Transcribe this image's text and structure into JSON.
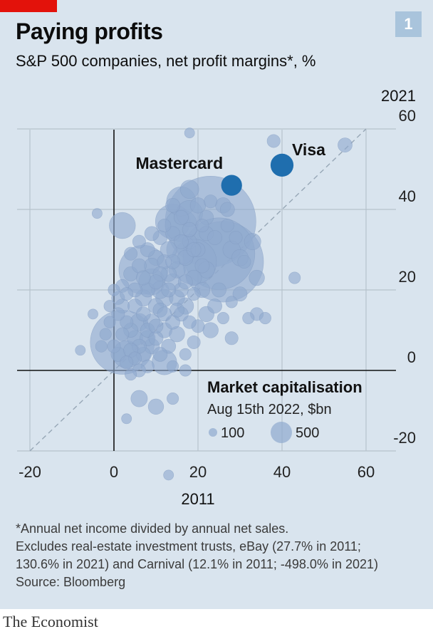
{
  "header": {
    "title": "Paying profits",
    "subtitle": "S&P 500 companies, net profit margins*, %",
    "figure_number": "1"
  },
  "chart_data": {
    "type": "scatter",
    "title": "Paying profits",
    "subtitle": "S&P 500 companies, net profit margins*, %",
    "xlabel": "2011",
    "ylabel": "2021",
    "xlim": [
      -20,
      70
    ],
    "ylim": [
      -20,
      60
    ],
    "x_ticks": [
      -20,
      0,
      20,
      40,
      60
    ],
    "y_ticks": [
      -20,
      0,
      20,
      40,
      60
    ],
    "grid": true,
    "diagonal_reference_line": "y = x (dashed)",
    "size_legend": {
      "title": "Market capitalisation",
      "subtitle": "Aug 15th 2022, $bn",
      "entries": [
        {
          "label": "100",
          "value": 100
        },
        {
          "label": "500",
          "value": 500
        }
      ]
    },
    "highlighted": [
      {
        "name": "Visa",
        "x": 40,
        "y": 51,
        "cap": 400
      },
      {
        "name": "Mastercard",
        "x": 28,
        "y": 46,
        "cap": 330
      }
    ],
    "big_points": [
      {
        "x": 23,
        "y": 37,
        "cap": 2400
      },
      {
        "x": 25,
        "y": 29,
        "cap": 1500
      },
      {
        "x": 26,
        "y": 27,
        "cap": 1900
      },
      {
        "x": 2,
        "y": 7,
        "cap": 1200
      },
      {
        "x": 7,
        "y": 25,
        "cap": 700
      },
      {
        "x": 16,
        "y": 36,
        "cap": 300
      },
      {
        "x": 16,
        "y": 42,
        "cap": 250
      },
      {
        "x": 19,
        "y": 27,
        "cap": 600
      },
      {
        "x": 14,
        "y": 37,
        "cap": 350
      },
      {
        "x": 2,
        "y": 36,
        "cap": 200
      },
      {
        "x": 16,
        "y": 30,
        "cap": 250
      },
      {
        "x": 12,
        "y": 2,
        "cap": 180
      },
      {
        "x": 3,
        "y": 4,
        "cap": 220
      },
      {
        "x": 18,
        "y": 39,
        "cap": 200
      },
      {
        "x": 9,
        "y": 22,
        "cap": 200
      }
    ],
    "points": [
      {
        "x": 18,
        "y": 59,
        "cap": 30
      },
      {
        "x": 38,
        "y": 57,
        "cap": 50
      },
      {
        "x": 55,
        "y": 56,
        "cap": 60
      },
      {
        "x": -4,
        "y": 39,
        "cap": 30
      },
      {
        "x": 43,
        "y": 23,
        "cap": 40
      },
      {
        "x": 34,
        "y": 23,
        "cap": 70
      },
      {
        "x": 34,
        "y": 14,
        "cap": 50
      },
      {
        "x": 36,
        "y": 13,
        "cap": 40
      },
      {
        "x": 28,
        "y": 17,
        "cap": 40
      },
      {
        "x": 23,
        "y": 10,
        "cap": 70
      },
      {
        "x": 24,
        "y": 16,
        "cap": 60
      },
      {
        "x": 25,
        "y": 20,
        "cap": 60
      },
      {
        "x": 28,
        "y": 8,
        "cap": 50
      },
      {
        "x": 32,
        "y": 13,
        "cap": 40
      },
      {
        "x": 20,
        "y": 11,
        "cap": 50
      },
      {
        "x": 26,
        "y": 13,
        "cap": 40
      },
      {
        "x": 30,
        "y": 19,
        "cap": 60
      },
      {
        "x": 22,
        "y": 25,
        "cap": 80
      },
      {
        "x": 28,
        "y": 30,
        "cap": 90
      },
      {
        "x": 30,
        "y": 28,
        "cap": 80
      },
      {
        "x": 33,
        "y": 32,
        "cap": 80
      },
      {
        "x": 20,
        "y": 41,
        "cap": 70
      },
      {
        "x": 27,
        "y": 40,
        "cap": 60
      },
      {
        "x": 26,
        "y": 41,
        "cap": 70
      },
      {
        "x": 22,
        "y": 34,
        "cap": 60
      },
      {
        "x": 18,
        "y": 32,
        "cap": 60
      },
      {
        "x": 16,
        "y": 20,
        "cap": 60
      },
      {
        "x": 17,
        "y": 16,
        "cap": 80
      },
      {
        "x": 14,
        "y": 22,
        "cap": 80
      },
      {
        "x": 12,
        "y": 18,
        "cap": 90
      },
      {
        "x": 10,
        "y": 16,
        "cap": 70
      },
      {
        "x": 9,
        "y": 12,
        "cap": 80
      },
      {
        "x": 8,
        "y": 10,
        "cap": 60
      },
      {
        "x": 6,
        "y": 12,
        "cap": 90
      },
      {
        "x": 5,
        "y": 8,
        "cap": 70
      },
      {
        "x": 4,
        "y": 10,
        "cap": 60
      },
      {
        "x": 3,
        "y": 12,
        "cap": 50
      },
      {
        "x": 2,
        "y": 16,
        "cap": 60
      },
      {
        "x": 1,
        "y": 14,
        "cap": 50
      },
      {
        "x": 5,
        "y": 16,
        "cap": 60
      },
      {
        "x": 7,
        "y": 18,
        "cap": 80
      },
      {
        "x": 11,
        "y": 20,
        "cap": 90
      },
      {
        "x": 13,
        "y": 24,
        "cap": 70
      },
      {
        "x": 15,
        "y": 25,
        "cap": 80
      },
      {
        "x": 12,
        "y": 27,
        "cap": 60
      },
      {
        "x": 10,
        "y": 28,
        "cap": 70
      },
      {
        "x": 8,
        "y": 30,
        "cap": 60
      },
      {
        "x": 11,
        "y": 33,
        "cap": 60
      },
      {
        "x": 13,
        "y": 30,
        "cap": 80
      },
      {
        "x": 17,
        "y": 28,
        "cap": 70
      },
      {
        "x": 19,
        "y": 23,
        "cap": 70
      },
      {
        "x": 21,
        "y": 20,
        "cap": 70
      },
      {
        "x": 22,
        "y": 14,
        "cap": 70
      },
      {
        "x": 16,
        "y": 14,
        "cap": 60
      },
      {
        "x": 14,
        "y": 12,
        "cap": 60
      },
      {
        "x": 12,
        "y": 10,
        "cap": 70
      },
      {
        "x": 10,
        "y": 8,
        "cap": 60
      },
      {
        "x": 9,
        "y": 6,
        "cap": 70
      },
      {
        "x": 7,
        "y": 4,
        "cap": 60
      },
      {
        "x": 5,
        "y": 3,
        "cap": 50
      },
      {
        "x": 3,
        "y": 2,
        "cap": 50
      },
      {
        "x": 1,
        "y": 4,
        "cap": 60
      },
      {
        "x": 0,
        "y": 6,
        "cap": 50
      },
      {
        "x": -2,
        "y": 9,
        "cap": 40
      },
      {
        "x": -3,
        "y": 6,
        "cap": 40
      },
      {
        "x": -1,
        "y": 12,
        "cap": 40
      },
      {
        "x": 1,
        "y": 18,
        "cap": 50
      },
      {
        "x": 2,
        "y": 21,
        "cap": 50
      },
      {
        "x": 4,
        "y": 24,
        "cap": 60
      },
      {
        "x": 6,
        "y": 26,
        "cap": 60
      },
      {
        "x": 9,
        "y": 26,
        "cap": 70
      },
      {
        "x": 11,
        "y": 24,
        "cap": 60
      },
      {
        "x": 13,
        "y": 20,
        "cap": 60
      },
      {
        "x": 15,
        "y": 18,
        "cap": 70
      },
      {
        "x": 17,
        "y": 22,
        "cap": 60
      },
      {
        "x": 19,
        "y": 19,
        "cap": 50
      },
      {
        "x": 20,
        "y": 30,
        "cap": 60
      },
      {
        "x": 21,
        "y": 26,
        "cap": 60
      },
      {
        "x": 14,
        "y": 34,
        "cap": 60
      },
      {
        "x": 16,
        "y": 38,
        "cap": 60
      },
      {
        "x": 12,
        "y": 36,
        "cap": 50
      },
      {
        "x": 18,
        "y": 45,
        "cap": 100
      },
      {
        "x": 14,
        "y": 41,
        "cap": 60
      },
      {
        "x": 9,
        "y": 34,
        "cap": 60
      },
      {
        "x": 6,
        "y": 32,
        "cap": 50
      },
      {
        "x": 4,
        "y": 29,
        "cap": 50
      },
      {
        "x": 15,
        "y": 9,
        "cap": 70
      },
      {
        "x": 13,
        "y": 6,
        "cap": 60
      },
      {
        "x": 11,
        "y": 4,
        "cap": 60
      },
      {
        "x": 8,
        "y": 1,
        "cap": 50
      },
      {
        "x": 6,
        "y": 0,
        "cap": 50
      },
      {
        "x": 4,
        "y": -1,
        "cap": 40
      },
      {
        "x": 14,
        "y": 1,
        "cap": 40
      },
      {
        "x": 17,
        "y": 4,
        "cap": 40
      },
      {
        "x": 19,
        "y": 7,
        "cap": 50
      },
      {
        "x": 18,
        "y": 12,
        "cap": 50
      },
      {
        "x": 15,
        "y": 15,
        "cap": 60
      },
      {
        "x": 11,
        "y": 15,
        "cap": 60
      },
      {
        "x": 7,
        "y": 14,
        "cap": 60
      },
      {
        "x": 3,
        "y": 19,
        "cap": 50
      },
      {
        "x": 0,
        "y": 20,
        "cap": 40
      },
      {
        "x": -1,
        "y": 16,
        "cap": 40
      },
      {
        "x": 12,
        "y": 14,
        "cap": 60
      },
      {
        "x": 10,
        "y": 11,
        "cap": 60
      },
      {
        "x": 8,
        "y": 8,
        "cap": 70
      },
      {
        "x": 6,
        "y": 6,
        "cap": 60
      },
      {
        "x": 4,
        "y": 5,
        "cap": 60
      },
      {
        "x": 2,
        "y": 9,
        "cap": 50
      },
      {
        "x": 8,
        "y": 20,
        "cap": 60
      },
      {
        "x": 10,
        "y": 22,
        "cap": 60
      },
      {
        "x": 14,
        "y": 27,
        "cap": 60
      },
      {
        "x": 7,
        "y": 23,
        "cap": 60
      },
      {
        "x": 5,
        "y": 20,
        "cap": 60
      },
      {
        "x": 16,
        "y": 32,
        "cap": 60
      },
      {
        "x": 18,
        "y": 35,
        "cap": 60
      },
      {
        "x": 19,
        "y": 30,
        "cap": 60
      },
      {
        "x": 22,
        "y": 38,
        "cap": 60
      },
      {
        "x": 24,
        "y": 33,
        "cap": 60
      },
      {
        "x": 21,
        "y": 36,
        "cap": 50
      },
      {
        "x": 23,
        "y": 42,
        "cap": 50
      },
      {
        "x": 27,
        "y": 36,
        "cap": 50
      },
      {
        "x": 29,
        "y": 33,
        "cap": 50
      },
      {
        "x": 31,
        "y": 27,
        "cap": 50
      },
      {
        "x": -5,
        "y": 14,
        "cap": 30
      },
      {
        "x": -8,
        "y": 5,
        "cap": 30
      },
      {
        "x": 6,
        "y": -7,
        "cap": 80
      },
      {
        "x": 10,
        "y": -9,
        "cap": 70
      },
      {
        "x": 14,
        "y": -7,
        "cap": 40
      },
      {
        "x": 17,
        "y": 0,
        "cap": 40
      },
      {
        "x": 13,
        "y": -26,
        "cap": 30
      },
      {
        "x": 3,
        "y": -12,
        "cap": 30
      }
    ]
  },
  "notes": {
    "line1": "*Annual net income divided by annual net sales.",
    "line2": "Excludes real-estate investment trusts, eBay (27.7% in 2011;",
    "line3": "130.6% in 2021) and Carnival (12.1% in 2011; -498.0% in 2021)",
    "line4": "Source: Bloomberg"
  },
  "footer": {
    "brand": "The Economist"
  },
  "colors": {
    "background": "#d9e4ee",
    "bubble_fill": "#8fa9cf",
    "highlight": "#1f6eae",
    "brand_red": "#e3120b",
    "number_box": "#a9c4dc"
  }
}
